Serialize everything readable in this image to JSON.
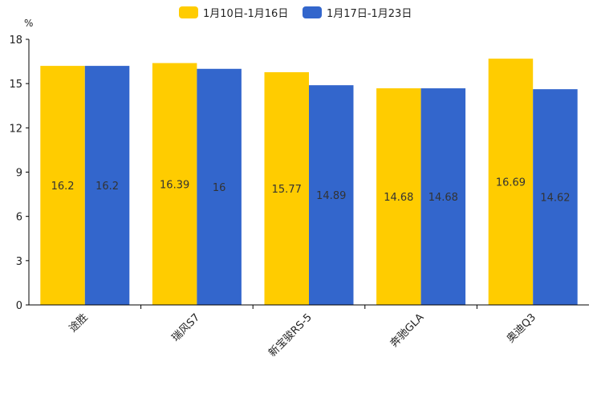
{
  "chart_data": {
    "type": "bar",
    "title": "",
    "xlabel": "",
    "ylabel": "",
    "y_unit": "%",
    "ylim": [
      0,
      18
    ],
    "yticks": [
      0,
      3,
      6,
      9,
      12,
      15,
      18
    ],
    "grid": false,
    "legend_position": "top-center",
    "categories": [
      "途胜",
      "瑞风S7",
      "新宝骏RS-5",
      "奔驰GLA",
      "奥迪Q3"
    ],
    "series": [
      {
        "name": "1月10日-1月16日",
        "color": "#FFCC00",
        "values": [
          16.2,
          16.39,
          15.77,
          14.68,
          16.69
        ]
      },
      {
        "name": "1月17日-1月23日",
        "color": "#3366CC",
        "values": [
          16.2,
          16,
          14.89,
          14.68,
          14.62
        ]
      }
    ]
  }
}
